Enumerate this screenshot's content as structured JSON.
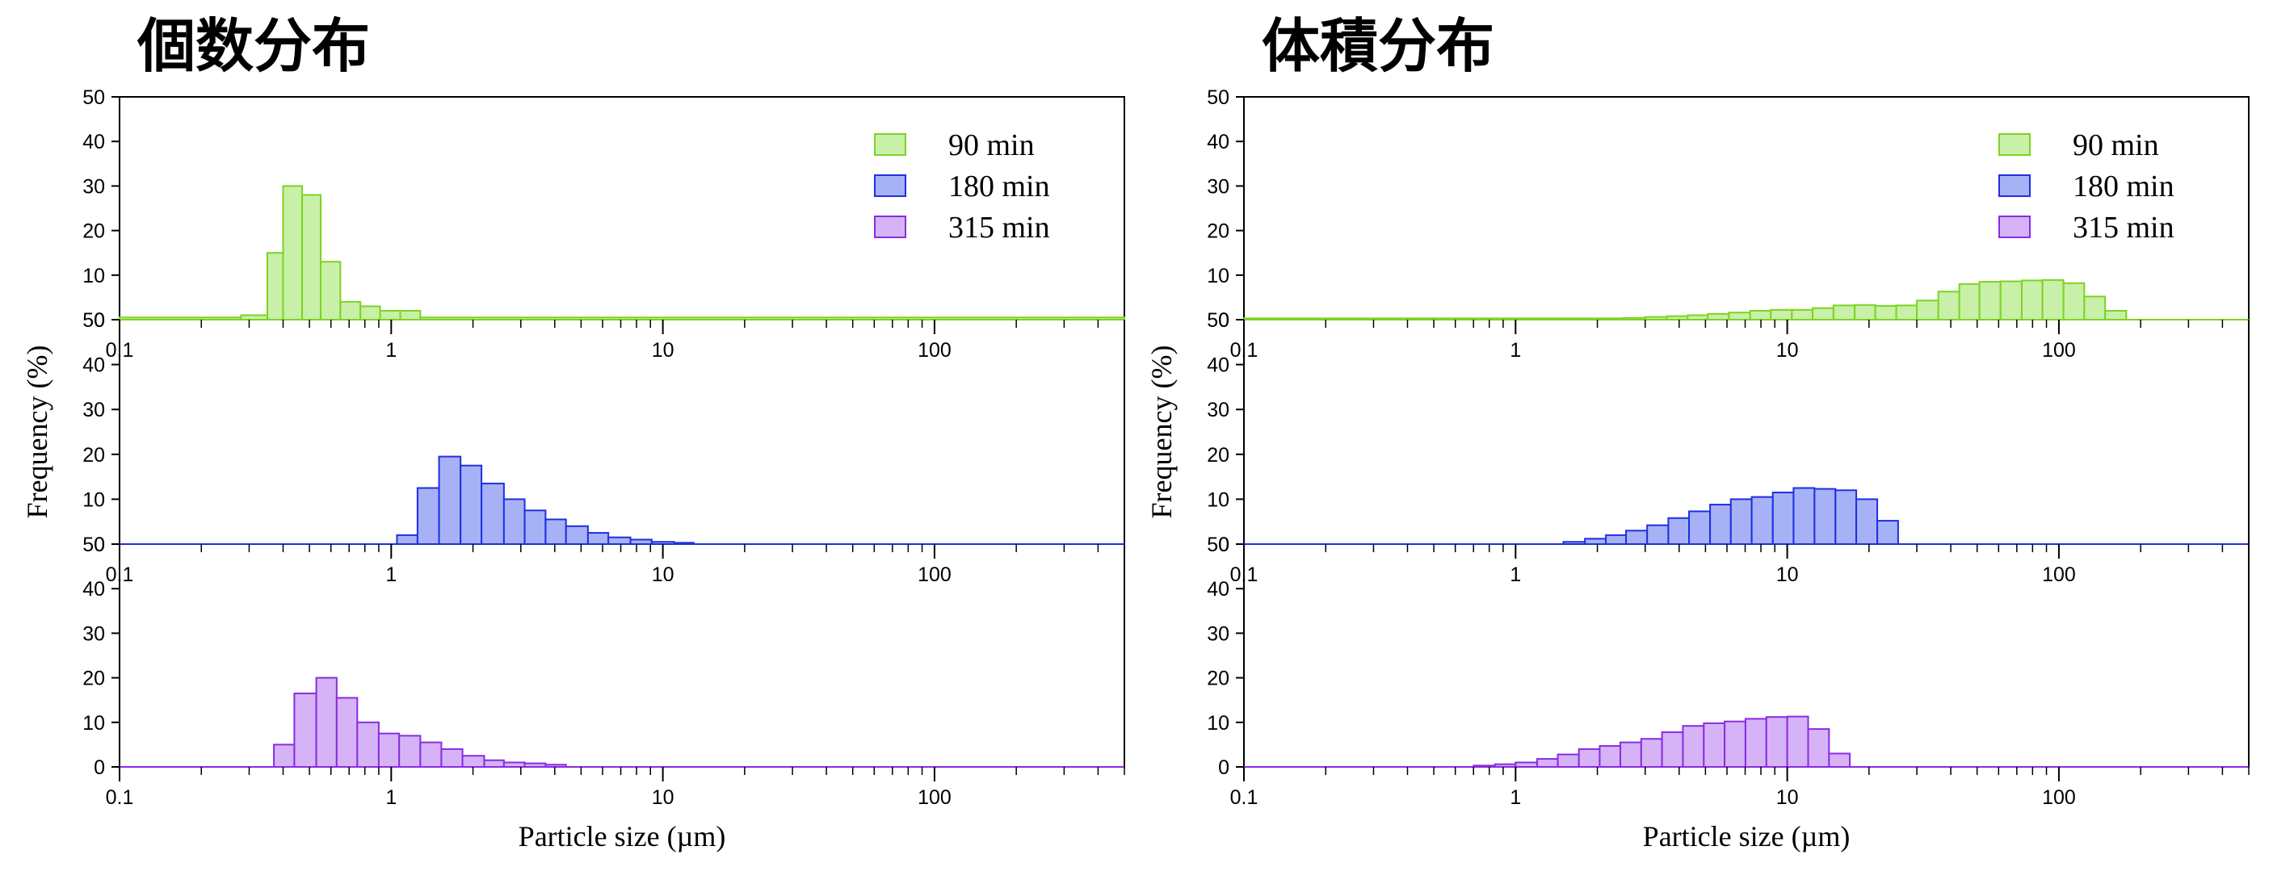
{
  "chart_data": [
    {
      "type": "bar",
      "title": "個数分布",
      "xlabel": "Particle size (µm)",
      "ylabel": "Frequency (%)",
      "xscale": "log",
      "xlim": [
        0.1,
        500
      ],
      "ylim": [
        0,
        50
      ],
      "x_ticks": [
        "0.1",
        "1",
        "10",
        "100"
      ],
      "y_ticks": [
        "0",
        "10",
        "20",
        "30",
        "40",
        "50"
      ],
      "grid": false,
      "legend_position": "top-right",
      "series": [
        {
          "name": "90 min",
          "color": "#7ed321",
          "fill": "#c8f0a8",
          "bins": [
            [
              0.1,
              0.28,
              0.5
            ],
            [
              0.28,
              0.35,
              1
            ],
            [
              0.35,
              0.4,
              15
            ],
            [
              0.4,
              0.47,
              30
            ],
            [
              0.47,
              0.55,
              28
            ],
            [
              0.55,
              0.65,
              13
            ],
            [
              0.65,
              0.77,
              4
            ],
            [
              0.77,
              0.91,
              3
            ],
            [
              0.91,
              1.08,
              2
            ],
            [
              1.08,
              1.28,
              2
            ],
            [
              1.28,
              500,
              0.5
            ]
          ]
        },
        {
          "name": "180 min",
          "color": "#1f2fe0",
          "fill": "#a6b2f5",
          "bins": [
            [
              0.1,
              1.05,
              0
            ],
            [
              1.05,
              1.25,
              2
            ],
            [
              1.25,
              1.5,
              12.5
            ],
            [
              1.5,
              1.8,
              19.5
            ],
            [
              1.8,
              2.15,
              17.5
            ],
            [
              2.15,
              2.6,
              13.5
            ],
            [
              2.6,
              3.1,
              10
            ],
            [
              3.1,
              3.7,
              7.5
            ],
            [
              3.7,
              4.4,
              5.5
            ],
            [
              4.4,
              5.3,
              4
            ],
            [
              5.3,
              6.3,
              2.5
            ],
            [
              6.3,
              7.6,
              1.5
            ],
            [
              7.6,
              9.1,
              1
            ],
            [
              9.1,
              11,
              0.5
            ],
            [
              11,
              13,
              0.3
            ],
            [
              13,
              500,
              0
            ]
          ]
        },
        {
          "name": "315 min",
          "color": "#8a2be2",
          "fill": "#d6b3f7",
          "bins": [
            [
              0.1,
              0.37,
              0
            ],
            [
              0.37,
              0.44,
              5
            ],
            [
              0.44,
              0.53,
              16.5
            ],
            [
              0.53,
              0.63,
              20
            ],
            [
              0.63,
              0.75,
              15.5
            ],
            [
              0.75,
              0.9,
              10
            ],
            [
              0.9,
              1.07,
              7.5
            ],
            [
              1.07,
              1.28,
              7
            ],
            [
              1.28,
              1.53,
              5.5
            ],
            [
              1.53,
              1.83,
              4
            ],
            [
              1.83,
              2.2,
              2.5
            ],
            [
              2.2,
              2.6,
              1.5
            ],
            [
              2.6,
              3.1,
              1
            ],
            [
              3.1,
              3.7,
              0.8
            ],
            [
              3.7,
              4.4,
              0.5
            ],
            [
              4.4,
              500,
              0
            ]
          ]
        }
      ]
    },
    {
      "type": "bar",
      "title": "体積分布",
      "xlabel": "Particle size (µm)",
      "ylabel": "Frequency (%)",
      "xscale": "log",
      "xlim": [
        0.1,
        500
      ],
      "ylim": [
        0,
        50
      ],
      "x_ticks": [
        "0.1",
        "1",
        "10",
        "100"
      ],
      "y_ticks": [
        "0",
        "10",
        "20",
        "30",
        "40",
        "50"
      ],
      "grid": false,
      "legend_position": "top-right",
      "series": [
        {
          "name": "90 min",
          "color": "#7ed321",
          "fill": "#c8f0a8",
          "bins": [
            [
              0.1,
              0.5,
              0.3
            ],
            [
              0.5,
              2.5,
              0.3
            ],
            [
              2.5,
              3,
              0.4
            ],
            [
              3,
              3.6,
              0.6
            ],
            [
              3.6,
              4.3,
              0.8
            ],
            [
              4.3,
              5.1,
              1
            ],
            [
              5.1,
              6.1,
              1.3
            ],
            [
              6.1,
              7.3,
              1.6
            ],
            [
              7.3,
              8.7,
              2
            ],
            [
              8.7,
              10.4,
              2.2
            ],
            [
              10.4,
              12.4,
              2.2
            ],
            [
              12.4,
              14.8,
              2.6
            ],
            [
              14.8,
              17.7,
              3.2
            ],
            [
              17.7,
              21.1,
              3.3
            ],
            [
              21.1,
              25.2,
              3.1
            ],
            [
              25.2,
              30,
              3.2
            ],
            [
              30,
              36,
              4.3
            ],
            [
              36,
              43,
              6.3
            ],
            [
              43,
              51,
              8
            ],
            [
              51,
              61,
              8.5
            ],
            [
              61,
              73,
              8.6
            ],
            [
              73,
              87,
              8.8
            ],
            [
              87,
              104,
              8.9
            ],
            [
              104,
              124,
              8.2
            ],
            [
              124,
              148,
              5.2
            ],
            [
              148,
              177,
              2
            ],
            [
              177,
              500,
              0
            ]
          ]
        },
        {
          "name": "180 min",
          "color": "#1f2fe0",
          "fill": "#a6b2f5",
          "bins": [
            [
              0.1,
              1.5,
              0
            ],
            [
              1.5,
              1.8,
              0.5
            ],
            [
              1.8,
              2.15,
              1.2
            ],
            [
              2.15,
              2.55,
              2
            ],
            [
              2.55,
              3.05,
              3
            ],
            [
              3.05,
              3.65,
              4.2
            ],
            [
              3.65,
              4.35,
              5.8
            ],
            [
              4.35,
              5.2,
              7.3
            ],
            [
              5.2,
              6.2,
              8.8
            ],
            [
              6.2,
              7.4,
              10
            ],
            [
              7.4,
              8.85,
              10.5
            ],
            [
              8.85,
              10.55,
              11.5
            ],
            [
              10.55,
              12.6,
              12.5
            ],
            [
              12.6,
              15.05,
              12.3
            ],
            [
              15.05,
              17.95,
              12
            ],
            [
              17.95,
              21.45,
              10
            ],
            [
              21.45,
              25.6,
              5.2
            ],
            [
              25.6,
              500,
              0
            ]
          ]
        },
        {
          "name": "315 min",
          "color": "#8a2be2",
          "fill": "#d6b3f7",
          "bins": [
            [
              0.1,
              0.7,
              0
            ],
            [
              0.7,
              0.84,
              0.3
            ],
            [
              0.84,
              1,
              0.6
            ],
            [
              1,
              1.2,
              1
            ],
            [
              1.2,
              1.43,
              1.8
            ],
            [
              1.43,
              1.71,
              2.8
            ],
            [
              1.71,
              2.04,
              4
            ],
            [
              2.04,
              2.43,
              4.7
            ],
            [
              2.43,
              2.9,
              5.5
            ],
            [
              2.9,
              3.46,
              6.3
            ],
            [
              3.46,
              4.13,
              7.8
            ],
            [
              4.13,
              4.93,
              9.2
            ],
            [
              4.93,
              5.88,
              9.8
            ],
            [
              5.88,
              7.02,
              10.2
            ],
            [
              7.02,
              8.38,
              10.8
            ],
            [
              8.38,
              10,
              11.2
            ],
            [
              10,
              11.94,
              11.3
            ],
            [
              11.94,
              14.25,
              8.5
            ],
            [
              14.25,
              17,
              3
            ],
            [
              17,
              500,
              0
            ]
          ]
        }
      ]
    }
  ]
}
